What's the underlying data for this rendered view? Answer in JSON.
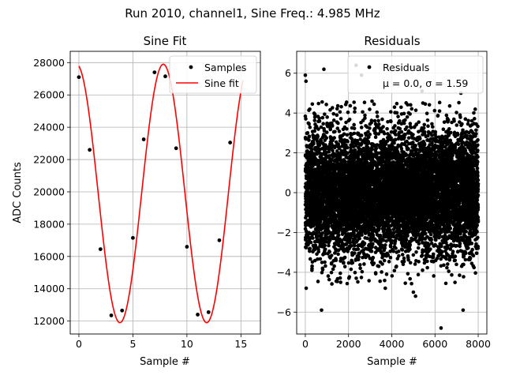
{
  "suptitle": "Run 2010, channel1, Sine Freq.: 4.985 MHz",
  "chart_data": [
    {
      "type": "scatter",
      "title": "Sine Fit",
      "xlabel": "Sample #",
      "ylabel": "ADC Counts",
      "xlim": [
        -0.8,
        16.8
      ],
      "ylim": [
        11200,
        28700
      ],
      "xticks": [
        0,
        5,
        10,
        15
      ],
      "yticks": [
        12000,
        14000,
        16000,
        18000,
        20000,
        22000,
        24000,
        26000,
        28000
      ],
      "grid": true,
      "legend": {
        "placement": "top-right",
        "entries": [
          "Samples",
          "Sine fit"
        ]
      },
      "series": [
        {
          "name": "Samples",
          "marker": "dot",
          "color": "#000000",
          "x": [
            0,
            1,
            2,
            3,
            4,
            5,
            6,
            7,
            8,
            9,
            10,
            11,
            12,
            13,
            14,
            15
          ],
          "y": [
            27100,
            22600,
            16450,
            12350,
            12650,
            17150,
            23250,
            27400,
            27150,
            22700,
            16600,
            12400,
            12550,
            17000,
            23050,
            27600
          ]
        },
        {
          "name": "Sine fit",
          "marker": "line",
          "color": "#ff0000",
          "model": {
            "offset": 19900,
            "amplitude": 8000,
            "period": 8.03,
            "phase": 1.74
          },
          "x_range": [
            0,
            15.2
          ]
        }
      ]
    },
    {
      "type": "scatter",
      "title": "Residuals",
      "xlabel": "Sample #",
      "ylabel": "",
      "xlim": [
        -400,
        8400
      ],
      "ylim": [
        -7.1,
        7.1
      ],
      "xticks": [
        0,
        2000,
        4000,
        6000,
        8000
      ],
      "yticks": [
        -6,
        -4,
        -2,
        0,
        2,
        4,
        6
      ],
      "grid": true,
      "legend": {
        "placement": "top-right",
        "entries": [
          "Residuals",
          "μ = 0.0, σ = 1.59"
        ]
      },
      "series": [
        {
          "name": "Residuals",
          "marker": "dot",
          "color": "#000000",
          "n_points": 8000,
          "mean": 0.0,
          "std": 1.59,
          "x_range": [
            0,
            8000
          ],
          "outliers": [
            {
              "x": 0,
              "y": 5.9
            },
            {
              "x": 30,
              "y": 5.6
            },
            {
              "x": 860,
              "y": 6.2
            },
            {
              "x": 2350,
              "y": 6.4
            },
            {
              "x": 2600,
              "y": 5.9
            },
            {
              "x": 6280,
              "y": -6.8
            },
            {
              "x": 750,
              "y": -5.9
            },
            {
              "x": 7300,
              "y": -5.9
            },
            {
              "x": 5000,
              "y": -5.0
            },
            {
              "x": 5100,
              "y": -5.2
            },
            {
              "x": 3700,
              "y": -4.8
            },
            {
              "x": 40,
              "y": -4.8
            },
            {
              "x": 5400,
              "y": 5.1
            },
            {
              "x": 7200,
              "y": 5.0
            }
          ]
        }
      ]
    }
  ]
}
